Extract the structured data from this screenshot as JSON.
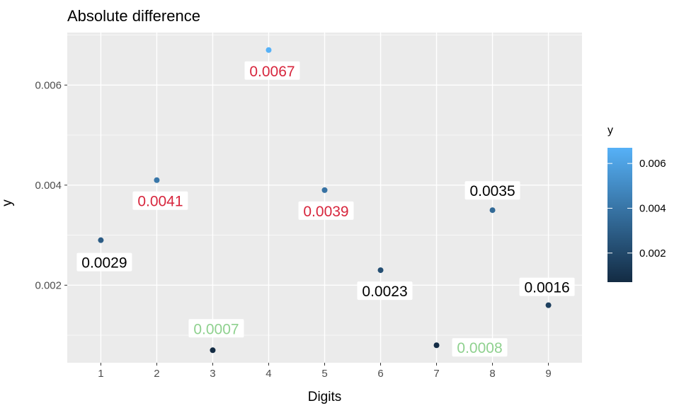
{
  "chart_data": {
    "type": "scatter",
    "title": "Absolute difference",
    "xlabel": "Digits",
    "ylabel": "y",
    "x_ticks": [
      "1",
      "2",
      "3",
      "4",
      "5",
      "6",
      "7",
      "8",
      "9"
    ],
    "y_ticks": [
      "0.002",
      "0.004",
      "0.006"
    ],
    "xlim": [
      0.4,
      9.6
    ],
    "ylim": [
      0.00045,
      0.00705
    ],
    "grid": true,
    "points": [
      {
        "x": 1,
        "y": 0.0029,
        "label": "0.0029",
        "label_color": "#000000"
      },
      {
        "x": 2,
        "y": 0.0041,
        "label": "0.0041",
        "label_color": "#d7263d"
      },
      {
        "x": 3,
        "y": 0.0007,
        "label": "0.0007",
        "label_color": "#8fd18f"
      },
      {
        "x": 4,
        "y": 0.0067,
        "label": "0.0067",
        "label_color": "#d7263d"
      },
      {
        "x": 5,
        "y": 0.0039,
        "label": "0.0039",
        "label_color": "#d7263d"
      },
      {
        "x": 6,
        "y": 0.0023,
        "label": "0.0023",
        "label_color": "#000000"
      },
      {
        "x": 7,
        "y": 0.0008,
        "label": "0.0008",
        "label_color": "#8fd18f"
      },
      {
        "x": 8,
        "y": 0.0035,
        "label": "0.0035",
        "label_color": "#000000"
      },
      {
        "x": 9,
        "y": 0.0016,
        "label": "0.0016",
        "label_color": "#000000"
      }
    ],
    "legend": {
      "title": "y",
      "position": "right",
      "type": "colorbar",
      "ticks": [
        "0.002",
        "0.004",
        "0.006"
      ],
      "tick_values": [
        0.002,
        0.004,
        0.006
      ],
      "range": [
        0.0007,
        0.0067
      ],
      "color_low": "#132b43",
      "color_high": "#56b1f7"
    },
    "panel_background": "#ebebeb",
    "grid_color": "#ffffff"
  }
}
